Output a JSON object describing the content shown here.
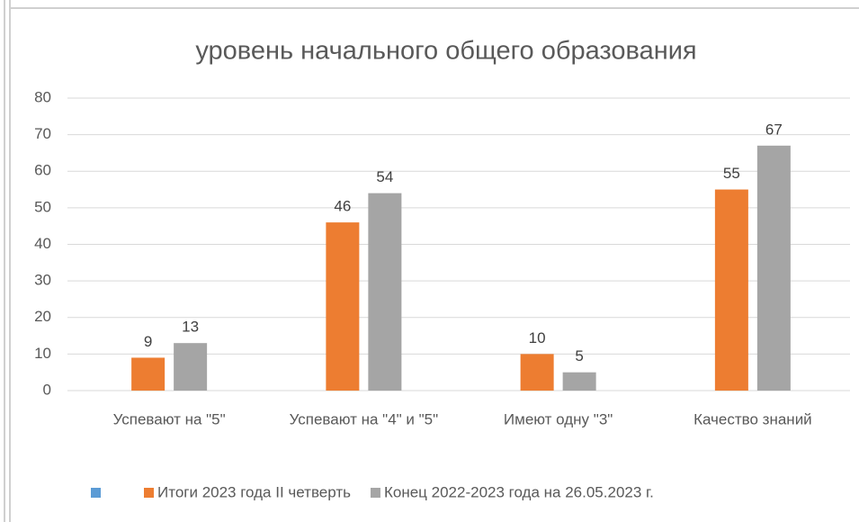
{
  "chart_data": {
    "type": "bar",
    "title": "уровень начального общего образования",
    "categories": [
      "Успевают на \"5\"",
      "Успевают на \"4\" и \"5\"",
      "Имеют одну \"3\"",
      "Качество знаний"
    ],
    "series": [
      {
        "name": "Итоги 2023 года II четверть",
        "color": "#ed7d31",
        "values": [
          9,
          46,
          10,
          55
        ]
      },
      {
        "name": "Конец 2022-2023 года на 26.05.2023 г.",
        "color": "#a5a5a5",
        "values": [
          13,
          54,
          5,
          67
        ]
      }
    ],
    "ylim": [
      0,
      80
    ],
    "yticks": [
      0,
      10,
      20,
      30,
      40,
      50,
      60,
      70,
      80
    ],
    "grid": true,
    "legend": "bottom"
  }
}
